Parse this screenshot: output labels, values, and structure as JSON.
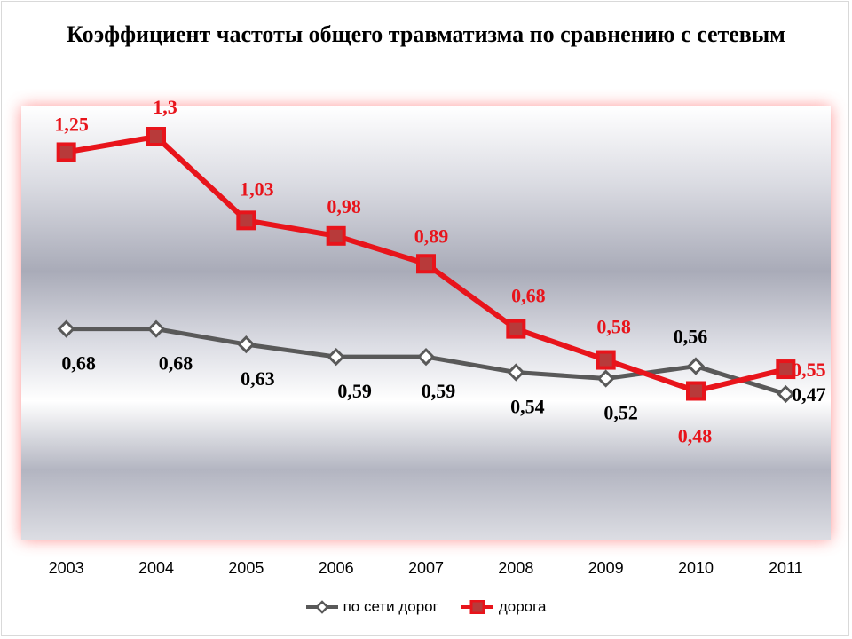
{
  "chart_data": {
    "type": "line",
    "title": "Коэффициент частоты общего травматизма по сравнению с сетевым",
    "categories": [
      "2003",
      "2004",
      "2005",
      "2006",
      "2007",
      "2008",
      "2009",
      "2010",
      "2011"
    ],
    "ylim": [
      0,
      1.4
    ],
    "grid": false,
    "legend_position": "bottom",
    "series": [
      {
        "name": "по сети дорог",
        "color": "#595959",
        "marker": "diamond",
        "values": [
          0.68,
          0.68,
          0.63,
          0.59,
          0.59,
          0.54,
          0.52,
          0.56,
          0.47
        ],
        "labels": [
          "0,68",
          "0,68",
          "0,63",
          "0,59",
          "0,59",
          "0,54",
          "0,52",
          "0,56",
          "0,47"
        ]
      },
      {
        "name": "дорога",
        "color": "#e8141b",
        "marker": "square",
        "values": [
          1.25,
          1.3,
          1.03,
          0.98,
          0.89,
          0.68,
          0.58,
          0.48,
          0.55
        ],
        "labels": [
          "1,25",
          "1,3",
          "1,03",
          "0,98",
          "0,89",
          "0,68",
          "0,58",
          "0,48",
          "0,55"
        ]
      }
    ]
  }
}
